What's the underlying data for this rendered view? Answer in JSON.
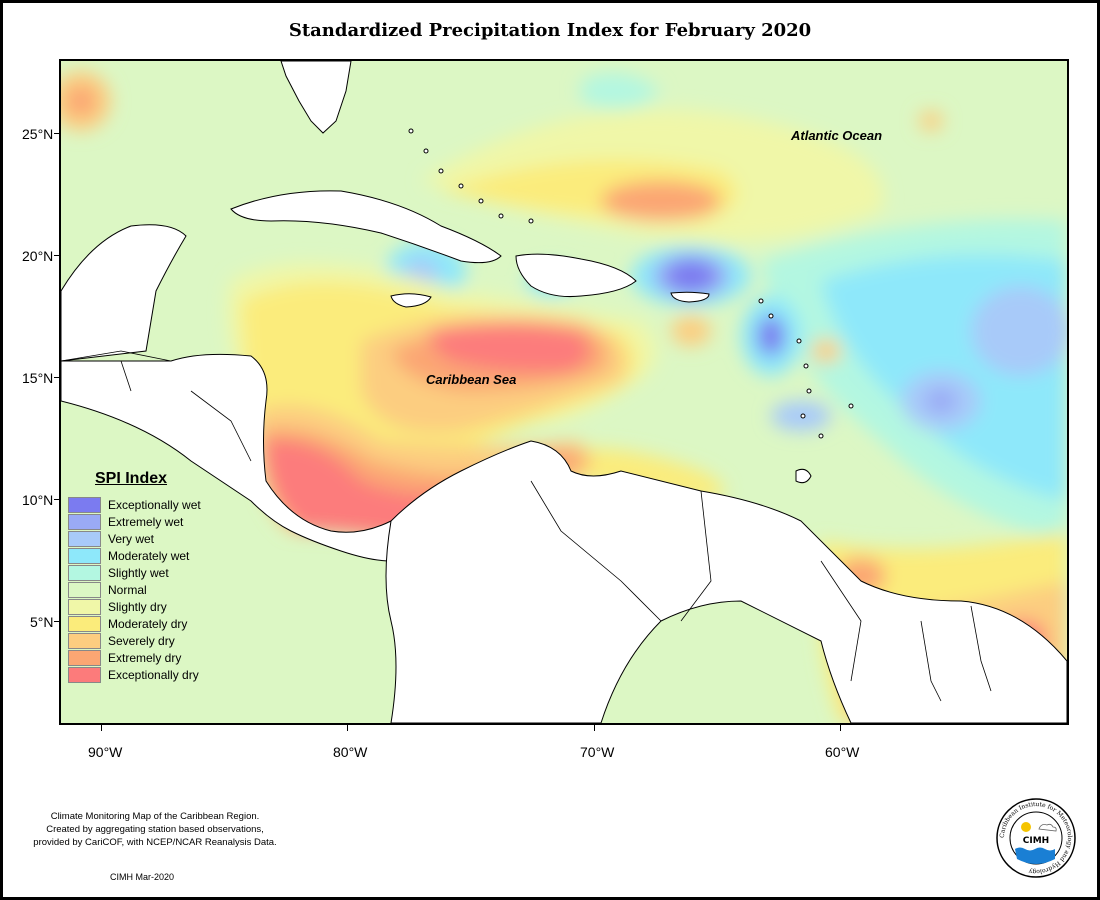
{
  "title": "Standardized Precipitation Index for February 2020",
  "map_labels": {
    "atlantic": "Atlantic Ocean",
    "caribbean": "Caribbean Sea"
  },
  "lat_ticks": [
    "25°N",
    "20°N",
    "15°N",
    "10°N",
    "5°N"
  ],
  "lon_ticks": [
    "90°W",
    "80°W",
    "70°W",
    "60°W"
  ],
  "legend": {
    "title": "SPI Index",
    "items": [
      {
        "label": "Exceptionally wet",
        "color": "#7b7bf0"
      },
      {
        "label": "Extremely wet",
        "color": "#9aaaf5"
      },
      {
        "label": "Very wet",
        "color": "#a8caf9"
      },
      {
        "label": "Moderately wet",
        "color": "#8ee8fa"
      },
      {
        "label": "Slightly wet",
        "color": "#b3f7e1"
      },
      {
        "label": "Normal",
        "color": "#dcf7c4"
      },
      {
        "label": "Slightly dry",
        "color": "#f0f7a8"
      },
      {
        "label": "Moderately dry",
        "color": "#fbec7b"
      },
      {
        "label": "Severely dry",
        "color": "#fccd80"
      },
      {
        "label": "Extremely dry",
        "color": "#fba673"
      },
      {
        "label": "Exceptionally dry",
        "color": "#fc7b7b"
      }
    ]
  },
  "credit": {
    "line1": "Climate Monitoring Map of the Caribbean Region.",
    "line2": "Created by aggregating station based observations,",
    "line3": "provided by CariCOF, with NCEP/NCAR Reanalysis Data.",
    "date": "CIMH Mar-2020"
  },
  "logo": {
    "text": "CIMH",
    "ring_text": "Caribbean Institute for Meteorology and Hydrology"
  }
}
